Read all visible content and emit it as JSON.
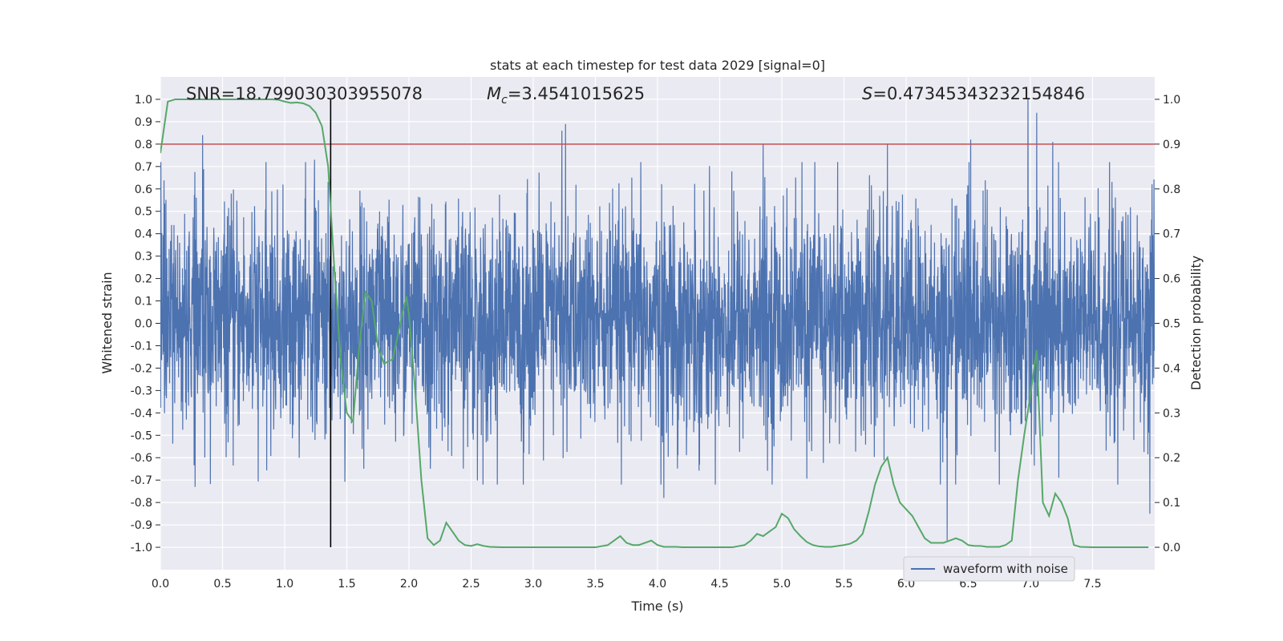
{
  "chart_data": {
    "type": "line",
    "title": "stats at each timestep for test data 2029 [signal=0]",
    "xlabel": "Time (s)",
    "ylabel": "Whitened strain",
    "y2label": "Detection probability",
    "xlim": [
      0,
      8.0
    ],
    "ylim": [
      -1.1,
      1.1
    ],
    "y2lim": [
      -0.05,
      1.05
    ],
    "xticks": [
      0.0,
      0.5,
      1.0,
      1.5,
      2.0,
      2.5,
      3.0,
      3.5,
      4.0,
      4.5,
      5.0,
      5.5,
      6.0,
      6.5,
      7.0,
      7.5
    ],
    "xtick_labels": [
      "0.0",
      "0.5",
      "1.0",
      "1.5",
      "2.0",
      "2.5",
      "3.0",
      "3.5",
      "4.0",
      "4.5",
      "5.0",
      "5.5",
      "6.0",
      "6.5",
      "7.0",
      "7.5"
    ],
    "yticks": [
      1.0,
      0.9,
      0.8,
      0.7,
      0.6,
      0.5,
      0.4,
      0.3,
      0.2,
      0.1,
      0.0,
      -0.1,
      -0.2,
      -0.3,
      -0.4,
      -0.5,
      -0.6,
      -0.7,
      -0.8,
      -0.9,
      -1.0
    ],
    "ytick_labels": [
      "1.0",
      "0.9",
      "0.8",
      "0.7",
      "0.6",
      "0.5",
      "0.4",
      "0.3",
      "0.2",
      "0.1",
      "0.0",
      "-0.1",
      "-0.2",
      "-0.3",
      "-0.4",
      "-0.5",
      "-0.6",
      "-0.7",
      "-0.8",
      "-0.9",
      "-1.0"
    ],
    "y2ticks": [
      1.0,
      0.9,
      0.8,
      0.7,
      0.6,
      0.5,
      0.4,
      0.3,
      0.2,
      0.1,
      0.0
    ],
    "y2tick_labels": [
      "1.0",
      "0.9",
      "0.8",
      "0.7",
      "0.6",
      "0.5",
      "0.4",
      "0.3",
      "0.2",
      "0.1",
      "0.0"
    ],
    "grid": true,
    "annotations": {
      "snr": "SNR=18.799030303955078",
      "mc_symbol": "M",
      "mc_sub": "c",
      "mc_value": "=3.4541015625",
      "s_symbol": "S",
      "s_value": "=0.47345343232154846"
    },
    "threshold": {
      "value": 0.9,
      "axis": "y2",
      "color": "#c44e52"
    },
    "marker_time": 1.37,
    "legend": {
      "position": "lower-right",
      "entries": [
        "waveform with noise"
      ]
    },
    "series": [
      {
        "name": "waveform with noise",
        "axis": "y",
        "color": "#4c72b0",
        "sample_rate": 512,
        "duration": 8.0,
        "typical_amplitude": 0.4,
        "peaks": [
          {
            "t": 0.34,
            "v": 0.84
          },
          {
            "t": 0.28,
            "v": -0.73
          },
          {
            "t": 1.24,
            "v": 0.73
          },
          {
            "t": 3.23,
            "v": 0.86
          },
          {
            "t": 3.26,
            "v": 0.89
          },
          {
            "t": 4.05,
            "v": -0.78
          },
          {
            "t": 4.85,
            "v": 0.8
          },
          {
            "t": 5.85,
            "v": 0.8
          },
          {
            "t": 6.33,
            "v": -0.97
          },
          {
            "t": 6.52,
            "v": 0.82
          },
          {
            "t": 6.98,
            "v": 1.0
          },
          {
            "t": 7.05,
            "v": 0.94
          },
          {
            "t": 7.18,
            "v": 0.81
          },
          {
            "t": 7.96,
            "v": -0.85
          },
          {
            "t": 2.92,
            "v": -0.72
          }
        ]
      },
      {
        "name": "detection probability",
        "axis": "y2",
        "color": "#55a868",
        "x": [
          0.0,
          0.06,
          0.12,
          0.2,
          0.3,
          0.4,
          0.5,
          0.6,
          0.7,
          0.8,
          0.9,
          0.95,
          1.0,
          1.05,
          1.1,
          1.15,
          1.2,
          1.25,
          1.3,
          1.35,
          1.4,
          1.45,
          1.5,
          1.55,
          1.6,
          1.65,
          1.7,
          1.75,
          1.8,
          1.87,
          1.93,
          1.98,
          2.0,
          2.05,
          2.1,
          2.15,
          2.2,
          2.25,
          2.3,
          2.35,
          2.4,
          2.45,
          2.5,
          2.55,
          2.6,
          2.65,
          2.7,
          2.75,
          2.8,
          2.9,
          3.0,
          3.1,
          3.2,
          3.3,
          3.4,
          3.5,
          3.6,
          3.65,
          3.7,
          3.75,
          3.8,
          3.85,
          3.9,
          3.95,
          4.0,
          4.05,
          4.1,
          4.15,
          4.2,
          4.3,
          4.4,
          4.5,
          4.6,
          4.7,
          4.75,
          4.8,
          4.85,
          4.9,
          4.95,
          5.0,
          5.05,
          5.1,
          5.15,
          5.2,
          5.25,
          5.3,
          5.35,
          5.4,
          5.45,
          5.5,
          5.55,
          5.6,
          5.65,
          5.7,
          5.75,
          5.8,
          5.85,
          5.9,
          5.95,
          6.0,
          6.05,
          6.1,
          6.15,
          6.2,
          6.25,
          6.3,
          6.35,
          6.4,
          6.45,
          6.5,
          6.55,
          6.6,
          6.65,
          6.7,
          6.75,
          6.8,
          6.85,
          6.9,
          6.95,
          7.0,
          7.05,
          7.1,
          7.15,
          7.2,
          7.25,
          7.3,
          7.35,
          7.4,
          7.5,
          7.6,
          7.7,
          7.8,
          7.9,
          7.95
        ],
        "values": [
          0.88,
          0.995,
          1.0,
          1.0,
          1.0,
          1.0,
          1.0,
          1.0,
          1.0,
          1.0,
          1.0,
          0.999,
          0.995,
          0.992,
          0.993,
          0.991,
          0.985,
          0.97,
          0.94,
          0.85,
          0.62,
          0.42,
          0.3,
          0.28,
          0.45,
          0.57,
          0.55,
          0.45,
          0.41,
          0.42,
          0.5,
          0.56,
          0.52,
          0.35,
          0.15,
          0.02,
          0.005,
          0.015,
          0.055,
          0.035,
          0.015,
          0.005,
          0.003,
          0.007,
          0.003,
          0.001,
          0.0005,
          0.0,
          0.0,
          0.0,
          0.0,
          0.0,
          0.0,
          0.0,
          0.0,
          0.0,
          0.005,
          0.015,
          0.025,
          0.01,
          0.005,
          0.005,
          0.01,
          0.015,
          0.005,
          0.001,
          0.001,
          0.001,
          0.0,
          0.0,
          0.0,
          0.0,
          0.0,
          0.005,
          0.015,
          0.03,
          0.025,
          0.035,
          0.045,
          0.075,
          0.065,
          0.04,
          0.025,
          0.012,
          0.005,
          0.002,
          0.001,
          0.001,
          0.003,
          0.005,
          0.008,
          0.015,
          0.03,
          0.08,
          0.14,
          0.18,
          0.2,
          0.14,
          0.1,
          0.085,
          0.07,
          0.045,
          0.02,
          0.01,
          0.01,
          0.01,
          0.015,
          0.02,
          0.015,
          0.005,
          0.003,
          0.003,
          0.001,
          0.001,
          0.001,
          0.005,
          0.015,
          0.15,
          0.25,
          0.34,
          0.44,
          0.1,
          0.07,
          0.12,
          0.1,
          0.065,
          0.005,
          0.001,
          0.0,
          0.0,
          0.0,
          0.0,
          0.0,
          0.0
        ]
      }
    ]
  }
}
